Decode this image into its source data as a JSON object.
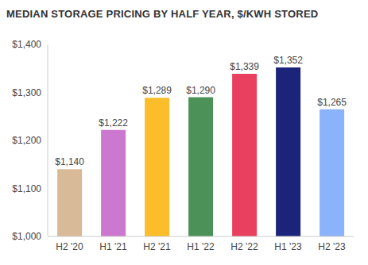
{
  "chart_data": {
    "type": "bar",
    "title": "MEDIAN STORAGE PRICING BY HALF YEAR, $/KWH STORED",
    "categories": [
      "H2 '20",
      "H1 '21",
      "H2 '21",
      "H1 '22",
      "H2 '22",
      "H1 '23",
      "H2 '23"
    ],
    "values": [
      1140,
      1222,
      1289,
      1290,
      1339,
      1352,
      1265
    ],
    "value_labels": [
      "$1,140",
      "$1,222",
      "$1,289",
      "$1,290",
      "$1,339",
      "$1,352",
      "$1,265"
    ],
    "colors": [
      "#d8b998",
      "#cc78d0",
      "#fcbd2a",
      "#4c9158",
      "#e8405e",
      "#1c237a",
      "#8ab3fb"
    ],
    "ylim": [
      1000,
      1400
    ],
    "yticks": [
      {
        "value": 1000,
        "label": "$1,000"
      },
      {
        "value": 1100,
        "label": "$1,100"
      },
      {
        "value": 1200,
        "label": "$1,200"
      },
      {
        "value": 1300,
        "label": "$1,300"
      },
      {
        "value": 1400,
        "label": "$1,400"
      }
    ],
    "grid": false,
    "data_labels": true
  }
}
